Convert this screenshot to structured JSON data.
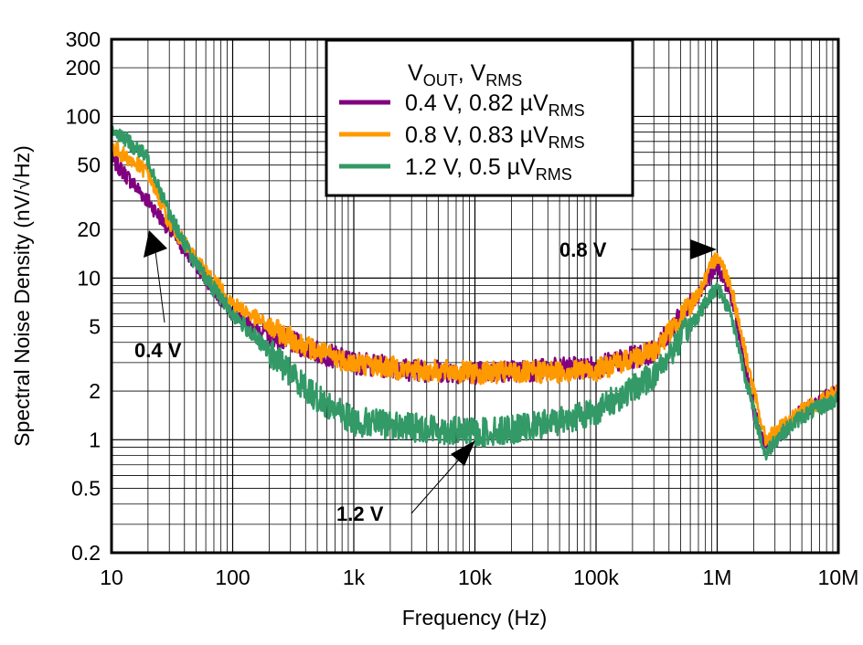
{
  "chart_data": {
    "type": "line",
    "xlabel": "Frequency (Hz)",
    "ylabel": "Spectral Noise Density (nV/√Hz)",
    "x_scale": "log",
    "y_scale": "log",
    "xlim": [
      10,
      10000000
    ],
    "ylim": [
      0.2,
      300
    ],
    "grid": true,
    "x_ticks": [
      {
        "v": 10,
        "label": "10"
      },
      {
        "v": 100,
        "label": "100"
      },
      {
        "v": 1000,
        "label": "1k"
      },
      {
        "v": 10000,
        "label": "10k"
      },
      {
        "v": 100000,
        "label": "100k"
      },
      {
        "v": 1000000,
        "label": "1M"
      },
      {
        "v": 10000000,
        "label": "10M"
      }
    ],
    "y_ticks": [
      {
        "v": 0.2,
        "label": "0.2"
      },
      {
        "v": 0.5,
        "label": "0.5"
      },
      {
        "v": 1,
        "label": "1"
      },
      {
        "v": 2,
        "label": "2"
      },
      {
        "v": 5,
        "label": "5"
      },
      {
        "v": 10,
        "label": "10"
      },
      {
        "v": 20,
        "label": "20"
      },
      {
        "v": 50,
        "label": "50"
      },
      {
        "v": 100,
        "label": "100"
      },
      {
        "v": 200,
        "label": "200"
      },
      {
        "v": 300,
        "label": "300"
      }
    ],
    "legend": {
      "placement": "top-center",
      "title_main": "V",
      "title_sub1": "OUT",
      "title_mid": ", V",
      "title_sub2": "RMS"
    },
    "series": [
      {
        "name": "0.4 V, 0.82 µV",
        "name_sub": "RMS",
        "color": "#800080",
        "x": [
          10,
          20,
          30,
          50,
          100,
          200,
          500,
          1000,
          3000,
          10000,
          30000,
          100000,
          300000,
          700000,
          1000000,
          1300000,
          2000000,
          2500000,
          3000000,
          5000000,
          10000000
        ],
        "y": [
          55,
          30,
          20,
          12,
          6,
          4.5,
          3.5,
          3,
          2.7,
          2.6,
          2.7,
          2.8,
          3.5,
          8,
          12,
          8,
          1.5,
          0.9,
          1.0,
          1.5,
          2
        ]
      },
      {
        "name": "0.8 V, 0.83 µV",
        "name_sub": "RMS",
        "color": "#FF9900",
        "x": [
          10,
          20,
          30,
          50,
          100,
          200,
          500,
          1000,
          3000,
          10000,
          30000,
          100000,
          300000,
          700000,
          1000000,
          1300000,
          2000000,
          2500000,
          3000000,
          5000000,
          10000000
        ],
        "y": [
          65,
          45,
          22,
          13,
          7,
          5,
          3.5,
          3,
          2.7,
          2.6,
          2.6,
          2.7,
          3.5,
          8,
          14,
          9,
          2,
          1.0,
          1.1,
          1.5,
          2
        ]
      },
      {
        "name": "1.2 V, 0.5 µV",
        "name_sub": "RMS",
        "color": "#339966",
        "x": [
          10,
          20,
          30,
          50,
          100,
          200,
          500,
          1000,
          3000,
          10000,
          30000,
          100000,
          300000,
          700000,
          1000000,
          1300000,
          2000000,
          2500000,
          3000000,
          5000000,
          10000000
        ],
        "y": [
          85,
          55,
          25,
          12,
          6,
          3.5,
          1.8,
          1.3,
          1.2,
          1.1,
          1.2,
          1.5,
          2.5,
          6,
          9,
          6,
          1.5,
          0.8,
          1.0,
          1.4,
          1.8
        ]
      }
    ],
    "annotations": [
      {
        "text": "0.4 V",
        "at": [
          20,
          20
        ]
      },
      {
        "text": "0.8 V",
        "at": [
          1000000,
          14
        ]
      },
      {
        "text": "1.2 V",
        "at": [
          10000,
          1.0
        ]
      }
    ]
  }
}
